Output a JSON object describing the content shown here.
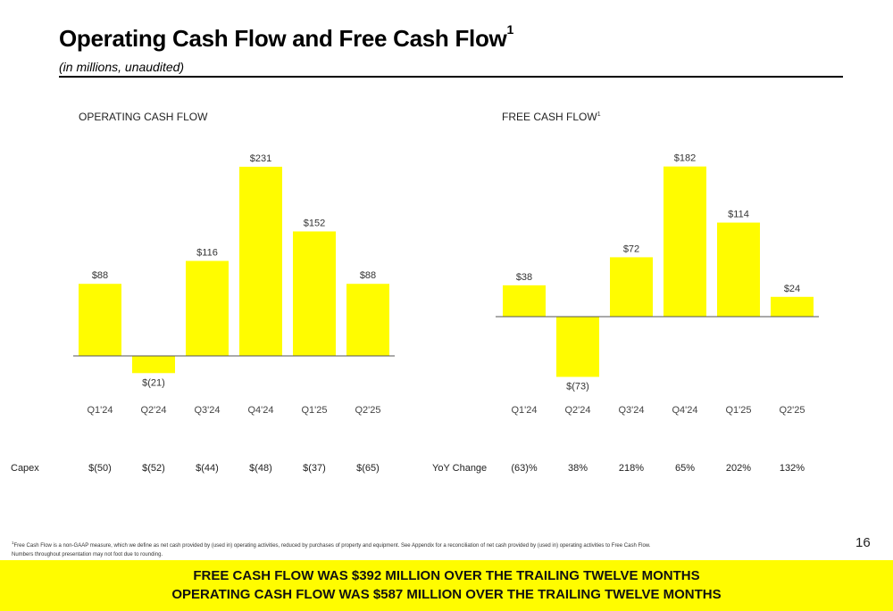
{
  "header": {
    "title": "Operating Cash Flow and Free Cash Flow",
    "title_sup": "1",
    "subtitle": "(in millions, unaudited)"
  },
  "colors": {
    "bar": "#FFFC00",
    "axis": "#555555",
    "banner": "#FFFC00"
  },
  "chart_data": [
    {
      "type": "bar",
      "title": "OPERATING CASH FLOW",
      "title_sup": "",
      "categories": [
        "Q1'24",
        "Q2'24",
        "Q3'24",
        "Q4'24",
        "Q1'25",
        "Q2'25"
      ],
      "values": [
        88,
        -21,
        116,
        231,
        152,
        88
      ],
      "data_labels": [
        "$88",
        "$(21)",
        "$116",
        "$231",
        "$152",
        "$88"
      ],
      "xlabel": "",
      "ylabel": "",
      "grid": false,
      "legend": "none"
    },
    {
      "type": "bar",
      "title": "FREE CASH FLOW",
      "title_sup": "1",
      "categories": [
        "Q1'24",
        "Q2'24",
        "Q3'24",
        "Q4'24",
        "Q1'25",
        "Q2'25"
      ],
      "values": [
        38,
        -73,
        72,
        182,
        114,
        24
      ],
      "data_labels": [
        "$38",
        "$(73)",
        "$72",
        "$182",
        "$114",
        "$24"
      ],
      "xlabel": "",
      "ylabel": "",
      "grid": false,
      "legend": "none"
    }
  ],
  "capex": {
    "label": "Capex",
    "values": [
      "$(50)",
      "$(52)",
      "$(44)",
      "$(48)",
      "$(37)",
      "$(65)"
    ]
  },
  "yoy": {
    "label": "YoY Change",
    "values": [
      "(63)%",
      "38%",
      "218%",
      "65%",
      "202%",
      "132%"
    ]
  },
  "footnote": {
    "sup": "1",
    "line1": "Free Cash Flow is a non-GAAP measure, which we define as net cash provided by (used in) operating activities, reduced by purchases of property and equipment. See Appendix for a reconciliation of net cash provided by (used in) operating activities to Free Cash Flow.",
    "line2": "Numbers throughout presentation may not foot due to rounding."
  },
  "page_number": "16",
  "banner": {
    "line1": "FREE CASH FLOW WAS $392 MILLION OVER THE TRAILING TWELVE MONTHS",
    "line2": "OPERATING CASH FLOW WAS $587 MILLION OVER THE TRAILING TWELVE MONTHS"
  }
}
